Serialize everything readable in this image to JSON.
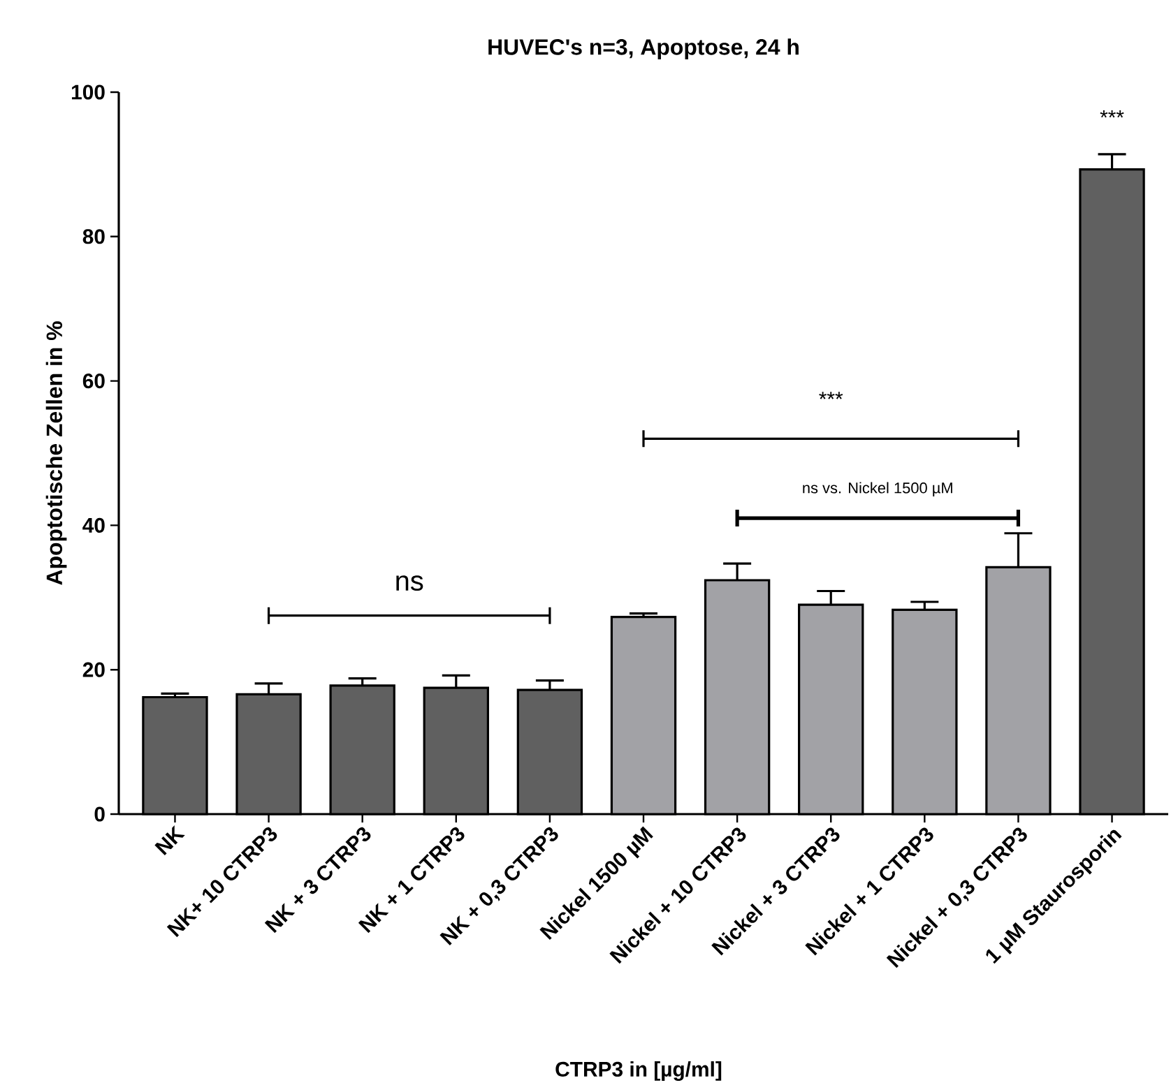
{
  "chart_data": {
    "type": "bar",
    "title": "HUVEC's n=3, Apoptose, 24 h",
    "xlabel": "CTRP3 in [µg/ml]",
    "ylabel": "Apoptotische Zellen in %",
    "categories": [
      "NK",
      "NK+ 10 CTRP3",
      "NK + 3 CTRP3",
      "NK + 1 CTRP3",
      "NK + 0,3 CTRP3",
      "Nickel 1500 µM",
      "Nickel + 10 CTRP3",
      "Nickel + 3 CTRP3",
      "Nickel + 1 CTRP3",
      "Nickel + 0,3 CTRP3",
      "1 µM Staurosporin"
    ],
    "values": [
      16.2,
      16.6,
      17.8,
      17.5,
      17.2,
      27.3,
      32.4,
      29.0,
      28.3,
      34.2,
      89.3
    ],
    "errors": [
      0.5,
      1.5,
      1.0,
      1.7,
      1.3,
      0.5,
      2.3,
      1.9,
      1.1,
      4.7,
      2.1
    ],
    "colors": [
      "#606060",
      "#606060",
      "#606060",
      "#606060",
      "#606060",
      "#a2a2a6",
      "#a2a2a6",
      "#a2a2a6",
      "#a2a2a6",
      "#a2a2a6",
      "#606060"
    ],
    "ylim": [
      0,
      100
    ],
    "yticks": [
      0,
      20,
      40,
      60,
      80,
      100
    ],
    "annotations": [
      "ns",
      "***",
      "ns vs. Nickel 1500 µM",
      "***"
    ]
  }
}
